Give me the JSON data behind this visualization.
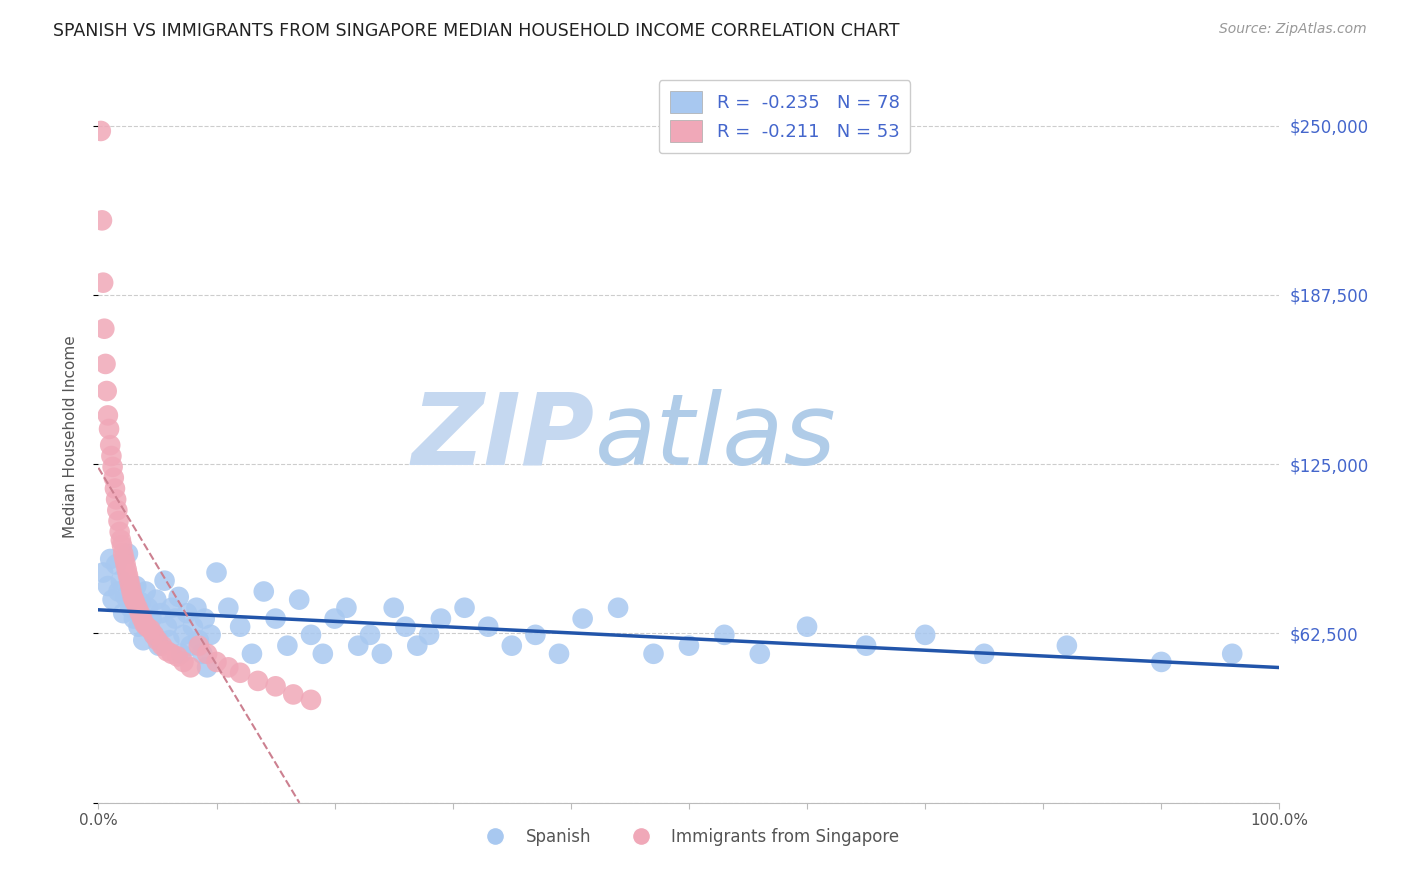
{
  "title": "SPANISH VS IMMIGRANTS FROM SINGAPORE MEDIAN HOUSEHOLD INCOME CORRELATION CHART",
  "source": "Source: ZipAtlas.com",
  "ylabel": "Median Household Income",
  "xlim": [
    0,
    1.0
  ],
  "ylim": [
    0,
    270000
  ],
  "yticks": [
    0,
    62500,
    125000,
    187500,
    250000
  ],
  "ytick_labels": [
    "",
    "$62,500",
    "$125,000",
    "$187,500",
    "$250,000"
  ],
  "bg_color": "#ffffff",
  "grid_color": "#c8c8c8",
  "watermark_ZIP": "ZIP",
  "watermark_atlas": "atlas",
  "watermark_color_ZIP": "#c5d8f0",
  "watermark_color_atlas": "#b0cce8",
  "spanish_color": "#a8c8f0",
  "singapore_color": "#f0a8b8",
  "trend_blue": "#2255aa",
  "trend_pink": "#cc8090",
  "axis_label_color": "#4466cc",
  "title_color": "#222222",
  "source_color": "#999999",
  "tick_label_color": "#555555",
  "legend_R1": "-0.235",
  "legend_N1": "78",
  "legend_R2": "-0.211",
  "legend_N2": "53",
  "spanish_x": [
    0.004,
    0.008,
    0.01,
    0.012,
    0.015,
    0.017,
    0.019,
    0.021,
    0.023,
    0.025,
    0.027,
    0.03,
    0.032,
    0.034,
    0.036,
    0.038,
    0.04,
    0.042,
    0.045,
    0.047,
    0.049,
    0.051,
    0.053,
    0.056,
    0.058,
    0.06,
    0.062,
    0.065,
    0.068,
    0.07,
    0.072,
    0.075,
    0.078,
    0.08,
    0.083,
    0.085,
    0.088,
    0.09,
    0.092,
    0.095,
    0.1,
    0.11,
    0.12,
    0.13,
    0.14,
    0.15,
    0.16,
    0.17,
    0.18,
    0.19,
    0.2,
    0.21,
    0.22,
    0.23,
    0.24,
    0.25,
    0.26,
    0.27,
    0.28,
    0.29,
    0.31,
    0.33,
    0.35,
    0.37,
    0.39,
    0.41,
    0.44,
    0.47,
    0.5,
    0.53,
    0.56,
    0.6,
    0.65,
    0.7,
    0.75,
    0.82,
    0.9,
    0.96
  ],
  "spanish_y": [
    85000,
    80000,
    90000,
    75000,
    88000,
    78000,
    82000,
    70000,
    76000,
    92000,
    72000,
    68000,
    80000,
    65000,
    74000,
    60000,
    78000,
    72000,
    68000,
    62000,
    75000,
    58000,
    70000,
    82000,
    65000,
    60000,
    72000,
    68000,
    76000,
    55000,
    62000,
    70000,
    58000,
    65000,
    72000,
    60000,
    55000,
    68000,
    50000,
    62000,
    85000,
    72000,
    65000,
    55000,
    78000,
    68000,
    58000,
    75000,
    62000,
    55000,
    68000,
    72000,
    58000,
    62000,
    55000,
    72000,
    65000,
    58000,
    62000,
    68000,
    72000,
    65000,
    58000,
    62000,
    55000,
    68000,
    72000,
    55000,
    58000,
    62000,
    55000,
    65000,
    58000,
    62000,
    55000,
    58000,
    52000,
    55000
  ],
  "singapore_x": [
    0.002,
    0.003,
    0.004,
    0.005,
    0.006,
    0.007,
    0.008,
    0.009,
    0.01,
    0.011,
    0.012,
    0.013,
    0.014,
    0.015,
    0.016,
    0.017,
    0.018,
    0.019,
    0.02,
    0.021,
    0.022,
    0.023,
    0.024,
    0.025,
    0.026,
    0.027,
    0.028,
    0.029,
    0.03,
    0.031,
    0.033,
    0.035,
    0.037,
    0.039,
    0.041,
    0.044,
    0.047,
    0.05,
    0.054,
    0.058,
    0.062,
    0.067,
    0.072,
    0.078,
    0.085,
    0.092,
    0.1,
    0.11,
    0.12,
    0.135,
    0.15,
    0.165,
    0.18
  ],
  "singapore_y": [
    248000,
    215000,
    192000,
    175000,
    162000,
    152000,
    143000,
    138000,
    132000,
    128000,
    124000,
    120000,
    116000,
    112000,
    108000,
    104000,
    100000,
    97000,
    95000,
    92000,
    90000,
    88000,
    86000,
    84000,
    82000,
    80000,
    78000,
    76000,
    75000,
    74000,
    72000,
    70000,
    68000,
    66000,
    65000,
    64000,
    62000,
    60000,
    58000,
    56000,
    55000,
    54000,
    52000,
    50000,
    58000,
    55000,
    52000,
    50000,
    48000,
    45000,
    43000,
    40000,
    38000
  ]
}
